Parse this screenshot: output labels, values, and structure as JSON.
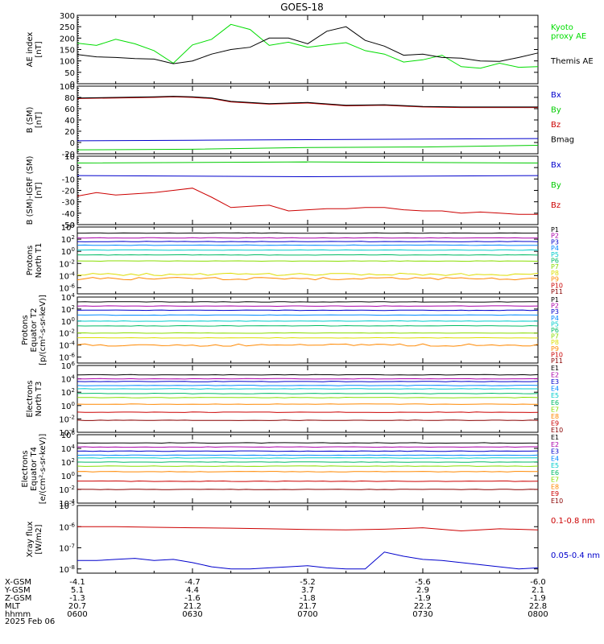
{
  "title": "GOES-18",
  "date": "2025 Feb 06",
  "ephemeris": {
    "labels": [
      "X-GSM",
      "Y-GSM",
      "Z-GSM",
      "MLT",
      "hhmm"
    ],
    "rows": [
      [
        "-4.1",
        "-4.7",
        "-5.2",
        "-5.6",
        "-6.0"
      ],
      [
        "5.1",
        "4.4",
        "3.7",
        "2.9",
        "2.1"
      ],
      [
        "-1.3",
        "-1.6",
        "-1.8",
        "-1.9",
        "-1.9"
      ],
      [
        "20.7",
        "21.2",
        "21.7",
        "22.2",
        "22.8"
      ],
      [
        "0600",
        "0630",
        "0700",
        "0730",
        "0800"
      ]
    ]
  },
  "chart_data": [
    {
      "type": "line",
      "ylabel_lines": [
        "AE index",
        "[nT]"
      ],
      "ylim": [
        0,
        300
      ],
      "yticks": [
        "0",
        "50",
        "100",
        "150",
        "200",
        "250",
        "300"
      ],
      "x_minutes": [
        0,
        120
      ],
      "series": [
        {
          "name": "Kyoto proxy AE",
          "label_lines": [
            "Kyoto",
            "proxy AE"
          ],
          "color": "#00dd00",
          "x": [
            0,
            5,
            10,
            15,
            20,
            25,
            30,
            35,
            40,
            45,
            50,
            55,
            60,
            65,
            70,
            75,
            80,
            85,
            90,
            95,
            100,
            105,
            110,
            115,
            120
          ],
          "y": [
            178,
            168,
            195,
            175,
            145,
            90,
            170,
            195,
            260,
            238,
            168,
            182,
            160,
            170,
            180,
            145,
            130,
            95,
            105,
            125,
            75,
            68,
            90,
            72,
            75
          ]
        },
        {
          "name": "Themis AE",
          "label_lines": [
            "Themis AE"
          ],
          "color": "#000000",
          "x": [
            0,
            5,
            10,
            15,
            20,
            25,
            30,
            35,
            40,
            45,
            50,
            55,
            60,
            65,
            70,
            75,
            80,
            85,
            90,
            95,
            100,
            105,
            110,
            115,
            120
          ],
          "y": [
            128,
            118,
            115,
            110,
            108,
            88,
            100,
            130,
            150,
            160,
            200,
            200,
            175,
            230,
            250,
            190,
            165,
            125,
            130,
            115,
            112,
            100,
            98,
            115,
            135
          ]
        }
      ]
    },
    {
      "type": "line",
      "ylabel_lines": [
        "B (SM)",
        "[nT]"
      ],
      "ylim": [
        -20,
        100
      ],
      "yticks": [
        "-20",
        "0",
        "20",
        "40",
        "60",
        "80",
        "100"
      ],
      "series": [
        {
          "name": "Bx",
          "color": "#0000cc",
          "x": [
            0,
            30,
            60,
            90,
            120
          ],
          "y": [
            3,
            4,
            5,
            6,
            7
          ]
        },
        {
          "name": "By",
          "color": "#00cc00",
          "x": [
            0,
            30,
            60,
            90,
            120
          ],
          "y": [
            -13,
            -12,
            -9,
            -8,
            -5
          ]
        },
        {
          "name": "Bz",
          "color": "#cc0000",
          "x": [
            0,
            10,
            20,
            25,
            30,
            35,
            40,
            50,
            60,
            70,
            80,
            90,
            100,
            110,
            120
          ],
          "y": [
            78,
            79,
            80,
            81,
            80,
            78,
            72,
            68,
            70,
            65,
            66,
            63,
            62,
            62,
            62
          ]
        },
        {
          "name": "Bmag",
          "color": "#000000",
          "x": [
            0,
            10,
            20,
            25,
            30,
            35,
            40,
            50,
            60,
            70,
            80,
            90,
            100,
            110,
            120
          ],
          "y": [
            79,
            80,
            81,
            82,
            81,
            79,
            73,
            69,
            71,
            66,
            67,
            64,
            63,
            63,
            63
          ]
        }
      ]
    },
    {
      "type": "line",
      "ylabel_lines": [
        "B (SM)-IGRF (SM)",
        "[nT]"
      ],
      "ylim": [
        -50,
        10
      ],
      "yticks": [
        "-50",
        "-40",
        "-30",
        "-20",
        "-10",
        "0",
        "10"
      ],
      "series": [
        {
          "name": "Bx",
          "color": "#0000cc",
          "x": [
            0,
            60,
            120
          ],
          "y": [
            -7,
            -8,
            -7
          ]
        },
        {
          "name": "By",
          "color": "#00cc00",
          "x": [
            0,
            60,
            120
          ],
          "y": [
            4,
            5,
            4
          ]
        },
        {
          "name": "Bz",
          "color": "#cc0000",
          "x": [
            0,
            5,
            10,
            15,
            20,
            25,
            30,
            35,
            40,
            45,
            50,
            55,
            60,
            65,
            70,
            75,
            80,
            85,
            90,
            95,
            100,
            105,
            110,
            115,
            120
          ],
          "y": [
            -25,
            -22,
            -24,
            -23,
            -22,
            -20,
            -18,
            -26,
            -35,
            -34,
            -33,
            -38,
            -37,
            -36,
            -36,
            -35,
            -35,
            -37,
            -38,
            -38,
            -40,
            -39,
            -40,
            -41,
            -41
          ]
        }
      ]
    },
    {
      "type": "line",
      "log": true,
      "ylabel_lines": [
        "Protons",
        "North T1"
      ],
      "ylim_exp": [
        -7,
        4
      ],
      "yticks": [
        "10^4",
        "10^2",
        "10^0",
        "10^-2",
        "10^-4",
        "10^-6"
      ],
      "series": [
        {
          "name": "P1",
          "color": "#000000",
          "log10": 3.0
        },
        {
          "name": "P2",
          "color": "#aa00aa",
          "log10": 2.2
        },
        {
          "name": "P3",
          "color": "#0000cc",
          "log10": 1.6
        },
        {
          "name": "P4",
          "color": "#0088ff",
          "log10": 1.0
        },
        {
          "name": "P5",
          "color": "#00cccc",
          "log10": 0.2
        },
        {
          "name": "P6",
          "color": "#00bb66",
          "log10": -0.6
        },
        {
          "name": "P7",
          "color": "#88dd00",
          "log10": -1.6
        },
        {
          "name": "P8",
          "color": "#dddd00",
          "log10": -3.8
        },
        {
          "name": "P9",
          "color": "#ff8800",
          "log10": -4.5
        },
        {
          "name": "P10",
          "color": "#cc0000",
          "log10": null
        },
        {
          "name": "P11",
          "color": "#880000",
          "log10": null
        }
      ]
    },
    {
      "type": "line",
      "log": true,
      "ylabel_lines": [
        "Protons",
        "Equator T2",
        "[p/(cm²-s-sr-keV)]"
      ],
      "ylim_exp": [
        -7,
        4
      ],
      "yticks": [
        "10^4",
        "10^2",
        "10^0",
        "10^-2",
        "10^-4",
        "10^-6"
      ],
      "series": [
        {
          "name": "P1",
          "color": "#000000",
          "log10": 3.2
        },
        {
          "name": "P2",
          "color": "#aa00aa",
          "log10": 2.5
        },
        {
          "name": "P3",
          "color": "#0000cc",
          "log10": 1.8
        },
        {
          "name": "P4",
          "color": "#0088ff",
          "log10": 1.0
        },
        {
          "name": "P5",
          "color": "#00cccc",
          "log10": 0.0
        },
        {
          "name": "P6",
          "color": "#00bb66",
          "log10": -0.8
        },
        {
          "name": "P7",
          "color": "#88dd00",
          "log10": -2.0
        },
        {
          "name": "P8",
          "color": "#dddd00",
          "log10": -2.8
        },
        {
          "name": "P9",
          "color": "#ff8800",
          "log10": -4.0
        },
        {
          "name": "P10",
          "color": "#cc0000",
          "log10": null
        },
        {
          "name": "P11",
          "color": "#880000",
          "log10": null
        }
      ]
    },
    {
      "type": "line",
      "log": true,
      "ylabel_lines": [
        "Electrons",
        "North T3"
      ],
      "ylim_exp": [
        -4,
        6
      ],
      "yticks": [
        "10^6",
        "10^4",
        "10^2",
        "10^0",
        "10^-2",
        "10^-4"
      ],
      "series": [
        {
          "name": "E1",
          "color": "#000000",
          "log10": 4.6
        },
        {
          "name": "E2",
          "color": "#aa00aa",
          "log10": 4.0
        },
        {
          "name": "E3",
          "color": "#0000cc",
          "log10": 3.6
        },
        {
          "name": "E4",
          "color": "#0088ff",
          "log10": 3.0
        },
        {
          "name": "E5",
          "color": "#00cccc",
          "log10": 2.5
        },
        {
          "name": "E6",
          "color": "#00bb66",
          "log10": 1.8
        },
        {
          "name": "E7",
          "color": "#88dd00",
          "log10": 1.2
        },
        {
          "name": "E8",
          "color": "#ff8800",
          "log10": 0.2
        },
        {
          "name": "E9",
          "color": "#cc0000",
          "log10": -1.0
        },
        {
          "name": "E10",
          "color": "#880000",
          "log10": -2.2
        }
      ]
    },
    {
      "type": "line",
      "log": true,
      "ylabel_lines": [
        "Electrons",
        "Equator T4",
        "[e/(cm²-s-sr-keV)]"
      ],
      "ylim_exp": [
        -4,
        6
      ],
      "yticks": [
        "10^6",
        "10^4",
        "10^2",
        "10^0",
        "10^-2",
        "10^-4"
      ],
      "series": [
        {
          "name": "E1",
          "color": "#000000",
          "log10": 4.8
        },
        {
          "name": "E2",
          "color": "#aa00aa",
          "log10": 4.2
        },
        {
          "name": "E3",
          "color": "#0000cc",
          "log10": 3.6
        },
        {
          "name": "E4",
          "color": "#0088ff",
          "log10": 3.0
        },
        {
          "name": "E5",
          "color": "#00cccc",
          "log10": 2.6
        },
        {
          "name": "E6",
          "color": "#00bb66",
          "log10": 2.0
        },
        {
          "name": "E7",
          "color": "#88dd00",
          "log10": 1.4
        },
        {
          "name": "E8",
          "color": "#ff8800",
          "log10": 0.6
        },
        {
          "name": "E9",
          "color": "#cc0000",
          "log10": -0.8
        },
        {
          "name": "E10",
          "color": "#880000",
          "log10": -2.0
        }
      ]
    },
    {
      "type": "line",
      "log": true,
      "ylabel_lines": [
        "Xray flux",
        "[W/m2]"
      ],
      "ylim_exp": [
        -8.2,
        -5
      ],
      "yticks": [
        "10^-5",
        "10^-6",
        "10^-7",
        "10^-8"
      ],
      "series": [
        {
          "name": "0.1-0.8 nm",
          "color": "#cc0000",
          "x": [
            0,
            10,
            20,
            30,
            40,
            50,
            60,
            70,
            80,
            90,
            100,
            110,
            120
          ],
          "log10": [
            -6.0,
            -6.0,
            -6.03,
            -6.05,
            -6.07,
            -6.1,
            -6.13,
            -6.15,
            -6.12,
            -6.05,
            -6.2,
            -6.1,
            -6.15
          ]
        },
        {
          "name": "0.05-0.4 nm",
          "color": "#0000cc",
          "x": [
            0,
            5,
            10,
            15,
            20,
            25,
            30,
            35,
            40,
            45,
            50,
            55,
            60,
            65,
            70,
            75,
            80,
            85,
            90,
            95,
            100,
            105,
            110,
            115,
            120
          ],
          "log10": [
            -7.6,
            -7.6,
            -7.55,
            -7.5,
            -7.6,
            -7.55,
            -7.7,
            -7.9,
            -8.0,
            -8.0,
            -7.95,
            -7.9,
            -7.85,
            -7.95,
            -8.0,
            -8.0,
            -7.2,
            -7.4,
            -7.55,
            -7.6,
            -7.7,
            -7.8,
            -7.9,
            -8.0,
            -7.95
          ]
        }
      ]
    }
  ]
}
